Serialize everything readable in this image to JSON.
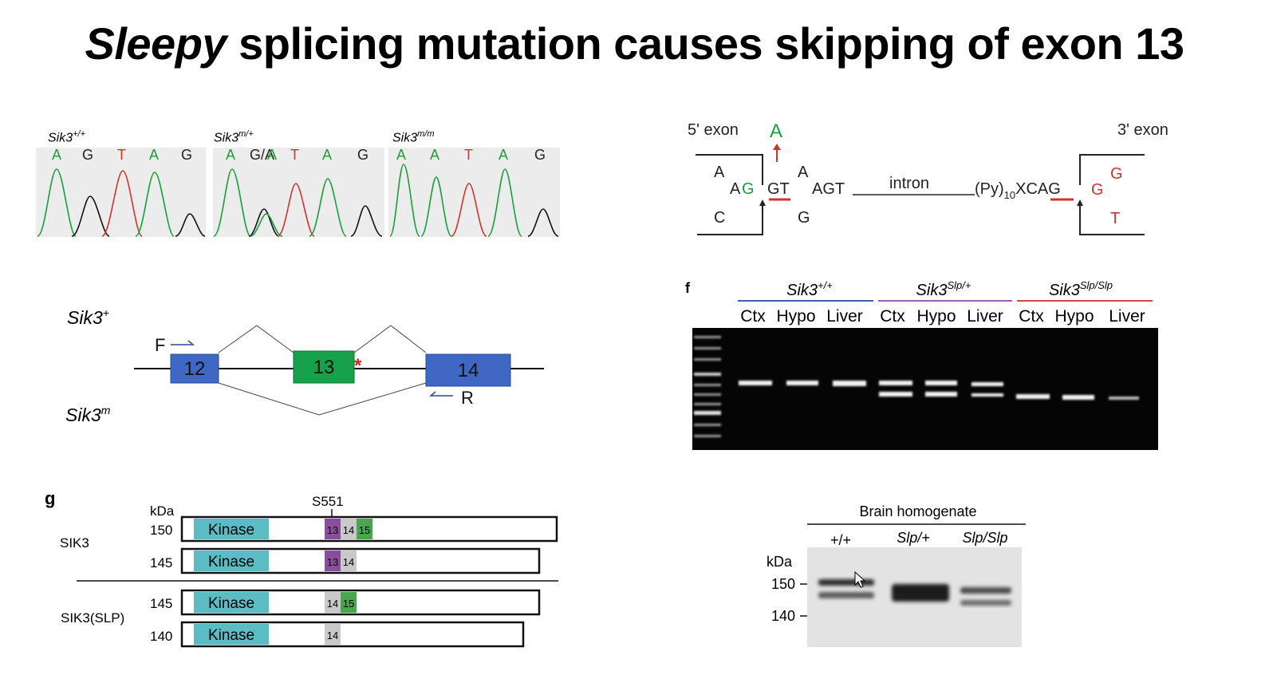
{
  "title": {
    "italic": "Sleepy",
    "rest": "splicing mutation causes skipping of exon 13"
  },
  "chromatograms": [
    {
      "gene": "Sik3",
      "genotype": "+/+",
      "bases": [
        "A",
        "G",
        "T",
        "A",
        "G"
      ],
      "base_colors": [
        "#1a9e3a",
        "#222",
        "#d0332b",
        "#1a9e3a",
        "#222"
      ]
    },
    {
      "gene": "Sik3",
      "genotype": "m/+",
      "bases": [
        "A",
        "G/A",
        "A",
        "T",
        "A",
        "G"
      ]
    },
    {
      "gene": "Sik3",
      "genotype": "m/m",
      "bases": [
        "A",
        "A",
        "T",
        "A",
        "G"
      ]
    }
  ],
  "splice_diagram": {
    "five_exon": "5' exon",
    "three_exon": "3' exon",
    "mut_base": "A",
    "left_top": "A",
    "left_mid_a": "A",
    "left_mid_g": "G",
    "left_bottom": "C",
    "gt": "GT",
    "gt_top": "A",
    "agt": "AGT",
    "gt_bottom": "G",
    "intron": "intron",
    "py": "(Py)",
    "py_sub": "10",
    "xcag": "XCAG",
    "right_g": "G",
    "right_top": "G",
    "right_bottom": "T"
  },
  "exon_diagram": {
    "wt_label": "Sik3",
    "wt_sup": "+",
    "mut_label": "Sik3",
    "mut_sup": "m",
    "primer_f": "F",
    "primer_r": "R",
    "exons": [
      "12",
      "13",
      "14"
    ],
    "star": "*"
  },
  "gel": {
    "groups": [
      {
        "gene": "Sik3",
        "genotype": "+/+",
        "color": "#3a5fb0"
      },
      {
        "gene": "Sik3",
        "genotype": "Slp/+",
        "color": "#9a5fb5"
      },
      {
        "gene": "Sik3",
        "genotype": "Slp/Slp",
        "color": "#d94848"
      }
    ],
    "lanes": [
      "Ctx",
      "Hypo",
      "Liver",
      "Ctx",
      "Hypo",
      "Liver",
      "Ctx",
      "Hypo",
      "Liver"
    ],
    "panel_mark": "f"
  },
  "protein": {
    "panel": "g",
    "kda_label": "kDa",
    "site": "S551",
    "kinase": "Kinase",
    "group1": "SIK3",
    "group2": "SIK3(SLP)",
    "rows": [
      {
        "kda": "150",
        "exons": [
          "13",
          "14",
          "15"
        ]
      },
      {
        "kda": "145",
        "exons": [
          "13",
          "14"
        ]
      },
      {
        "kda": "145",
        "exons": [
          "14",
          "15"
        ]
      },
      {
        "kda": "140",
        "exons": [
          "14"
        ]
      }
    ]
  },
  "western": {
    "header": "Brain homogenate",
    "lanes": [
      "+/+",
      "Slp/+",
      "Slp/Slp"
    ],
    "kda_label": "kDa",
    "markers": [
      "150",
      "140"
    ]
  }
}
